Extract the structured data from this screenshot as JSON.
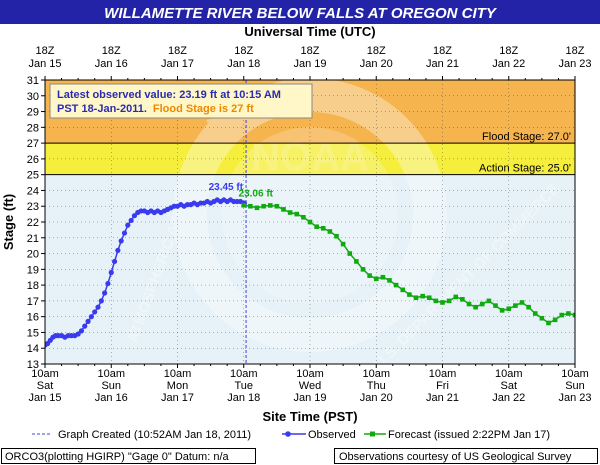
{
  "title": "WILLAMETTE RIVER BELOW FALLS AT OREGON CITY",
  "top_axis_label": "Universal Time (UTC)",
  "top_ticks": [
    {
      "l1": "18Z",
      "l2": "Jan 15"
    },
    {
      "l1": "18Z",
      "l2": "Jan 16"
    },
    {
      "l1": "18Z",
      "l2": "Jan 17"
    },
    {
      "l1": "18Z",
      "l2": "Jan 18"
    },
    {
      "l1": "18Z",
      "l2": "Jan 19"
    },
    {
      "l1": "18Z",
      "l2": "Jan 20"
    },
    {
      "l1": "18Z",
      "l2": "Jan 21"
    },
    {
      "l1": "18Z",
      "l2": "Jan 22"
    },
    {
      "l1": "18Z",
      "l2": "Jan 23"
    }
  ],
  "bottom_ticks": [
    {
      "l1": "10am",
      "l2": "Sat",
      "l3": "Jan 15"
    },
    {
      "l1": "10am",
      "l2": "Sun",
      "l3": "Jan 16"
    },
    {
      "l1": "10am",
      "l2": "Mon",
      "l3": "Jan 17"
    },
    {
      "l1": "10am",
      "l2": "Tue",
      "l3": "Jan 18"
    },
    {
      "l1": "10am",
      "l2": "Wed",
      "l3": "Jan 19"
    },
    {
      "l1": "10am",
      "l2": "Thu",
      "l3": "Jan 20"
    },
    {
      "l1": "10am",
      "l2": "Fri",
      "l3": "Jan 21"
    },
    {
      "l1": "10am",
      "l2": "Sat",
      "l3": "Jan 22"
    },
    {
      "l1": "10am",
      "l2": "Sun",
      "l3": "Jan 23"
    }
  ],
  "info_box": {
    "line1": "Latest observed value: 23.19 ft at 10:15 AM",
    "line2a": "PST 18-Jan-2011.",
    "line2b": "Flood Stage is 27 ft"
  },
  "legend": {
    "created": "Graph Created (10:52AM Jan 18, 2011)",
    "observed": "Observed",
    "forecast": "Forecast (issued 2:22PM Jan 17)"
  },
  "footer": {
    "left": "ORCO3(plotting HGIRP) \"Gage 0\" Datum: n/a",
    "right": "Observations courtesy of US Geological Survey"
  },
  "watermark": {
    "noaa": "NOAA",
    "left": "ATMOSPHERIC ADMINISTRATION",
    "right": "U.S. DEPARTMENT OF COMMERCE"
  },
  "colors": {
    "title_bg": "#2323a8",
    "plot_bg": "#e6f2f8",
    "flood_band": "#f5b44e",
    "action_band": "#f5ee3c",
    "observed": "#3a3aee",
    "forecast": "#10aa10",
    "now_line": "#4040dd",
    "info_fill": "#fff7c8",
    "info_text": "#2a2ab4",
    "info_flood": "#ee8800"
  },
  "chart_data": {
    "type": "line",
    "title": "WILLAMETTE RIVER BELOW FALLS AT OREGON CITY",
    "xlabel": "Site Time (PST)",
    "ylabel": "Stage (ft)",
    "x_unit": "days from 10am PST Jan 15 2011",
    "xlim": [
      0,
      8
    ],
    "ylim": [
      13,
      31
    ],
    "yticks": [
      13,
      14,
      15,
      16,
      17,
      18,
      19,
      20,
      21,
      22,
      23,
      24,
      25,
      26,
      27,
      28,
      29,
      30,
      31
    ],
    "grid": true,
    "thresholds": [
      {
        "name": "Flood Stage",
        "value": 27.0,
        "label": "Flood Stage: 27.0'"
      },
      {
        "name": "Action Stage",
        "value": 25.0,
        "label": "Action Stage: 25.0'"
      }
    ],
    "now_x": 3.035,
    "series": [
      {
        "name": "Observed",
        "x": [
          0,
          0.04,
          0.08,
          0.12,
          0.16,
          0.2,
          0.25,
          0.3,
          0.35,
          0.4,
          0.45,
          0.5,
          0.55,
          0.6,
          0.65,
          0.7,
          0.75,
          0.8,
          0.85,
          0.9,
          0.95,
          1.0,
          1.05,
          1.1,
          1.15,
          1.2,
          1.25,
          1.3,
          1.35,
          1.4,
          1.45,
          1.5,
          1.55,
          1.6,
          1.65,
          1.7,
          1.75,
          1.8,
          1.85,
          1.9,
          1.95,
          2.0,
          2.05,
          2.1,
          2.15,
          2.2,
          2.25,
          2.3,
          2.35,
          2.4,
          2.45,
          2.5,
          2.55,
          2.6,
          2.65,
          2.7,
          2.75,
          2.8,
          2.85,
          2.9,
          2.95,
          3.0,
          3.01
        ],
        "y": [
          14.2,
          14.3,
          14.5,
          14.7,
          14.8,
          14.8,
          14.8,
          14.7,
          14.8,
          14.8,
          14.8,
          14.9,
          15.1,
          15.4,
          15.7,
          16.0,
          16.3,
          16.6,
          17.0,
          17.5,
          18.1,
          18.8,
          19.5,
          20.2,
          20.8,
          21.3,
          21.8,
          22.1,
          22.4,
          22.6,
          22.7,
          22.7,
          22.6,
          22.7,
          22.6,
          22.7,
          22.6,
          22.7,
          22.8,
          22.9,
          23.0,
          23.0,
          23.1,
          23.0,
          23.1,
          23.1,
          23.2,
          23.1,
          23.2,
          23.2,
          23.3,
          23.2,
          23.3,
          23.4,
          23.3,
          23.4,
          23.3,
          23.4,
          23.3,
          23.3,
          23.3,
          23.2,
          23.19
        ]
      },
      {
        "name": "Forecast",
        "x": [
          3.0,
          3.1,
          3.2,
          3.3,
          3.4,
          3.5,
          3.6,
          3.7,
          3.8,
          3.9,
          4.0,
          4.1,
          4.2,
          4.3,
          4.4,
          4.5,
          4.6,
          4.7,
          4.8,
          4.9,
          5.0,
          5.1,
          5.2,
          5.3,
          5.4,
          5.5,
          5.6,
          5.7,
          5.8,
          5.9,
          6.0,
          6.1,
          6.2,
          6.3,
          6.4,
          6.5,
          6.6,
          6.7,
          6.8,
          6.9,
          7.0,
          7.1,
          7.2,
          7.3,
          7.4,
          7.5,
          7.6,
          7.7,
          7.8,
          7.9,
          8.0
        ],
        "y": [
          23.06,
          23.0,
          22.9,
          23.0,
          23.05,
          23.0,
          22.8,
          22.6,
          22.5,
          22.3,
          22.0,
          21.7,
          21.6,
          21.4,
          21.1,
          20.6,
          20.0,
          19.5,
          19.0,
          18.6,
          18.4,
          18.5,
          18.3,
          18.0,
          17.7,
          17.4,
          17.2,
          17.3,
          17.2,
          17.0,
          16.9,
          17.0,
          17.25,
          17.1,
          16.8,
          16.6,
          16.8,
          17.0,
          16.7,
          16.4,
          16.5,
          16.7,
          16.9,
          16.6,
          16.2,
          15.9,
          15.6,
          15.8,
          16.1,
          16.2,
          16.1
        ]
      }
    ],
    "annotations": [
      {
        "text": "23.45 ft",
        "x": 2.85,
        "y": 23.45,
        "series": "Observed"
      },
      {
        "text": "23.06 ft",
        "x": 3.0,
        "y": 23.06,
        "series": "Forecast"
      }
    ]
  }
}
